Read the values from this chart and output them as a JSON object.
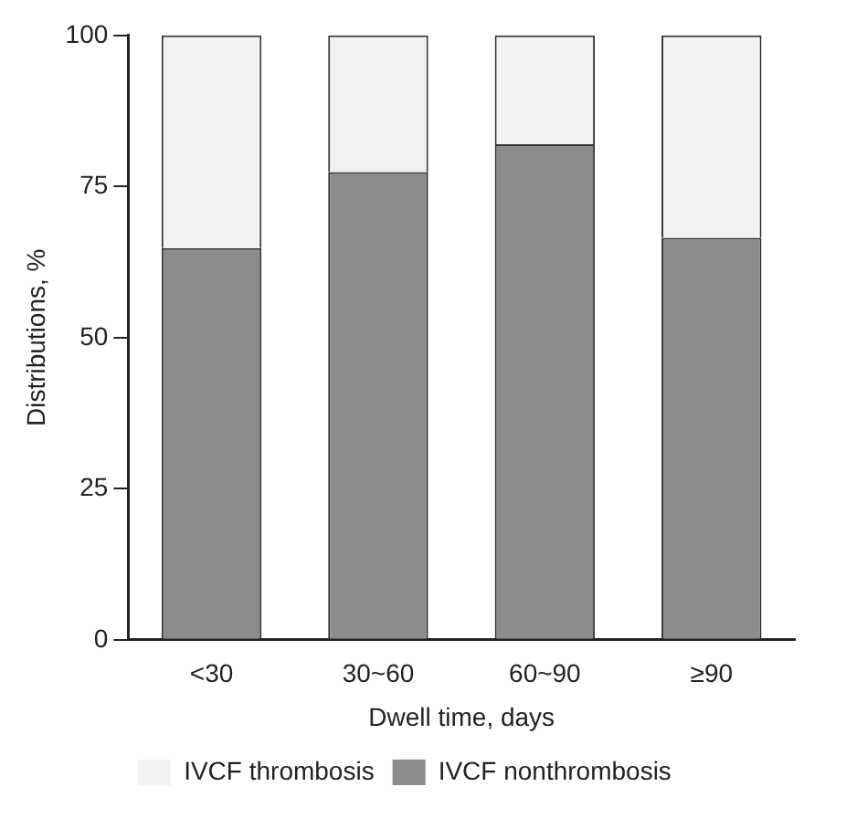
{
  "chart_data": {
    "type": "bar",
    "stacked": true,
    "xlabel": "Dwell time, days",
    "ylabel": "Distributions, %",
    "categories": [
      "<30",
      "30~60",
      "60~90",
      "≥90"
    ],
    "series": [
      {
        "name": "IVCF nonthrombosis",
        "color": "#8c8c8c",
        "values": [
          64.8,
          77.4,
          82.0,
          66.5
        ]
      },
      {
        "name": "IVCF thrombosis",
        "color": "#f2f2f2",
        "values": [
          35.2,
          22.6,
          18.0,
          33.5
        ]
      }
    ],
    "ylim": [
      0,
      100
    ],
    "yticks": [
      0,
      25,
      50,
      75,
      100
    ],
    "grid": false,
    "legend": "bottom"
  }
}
